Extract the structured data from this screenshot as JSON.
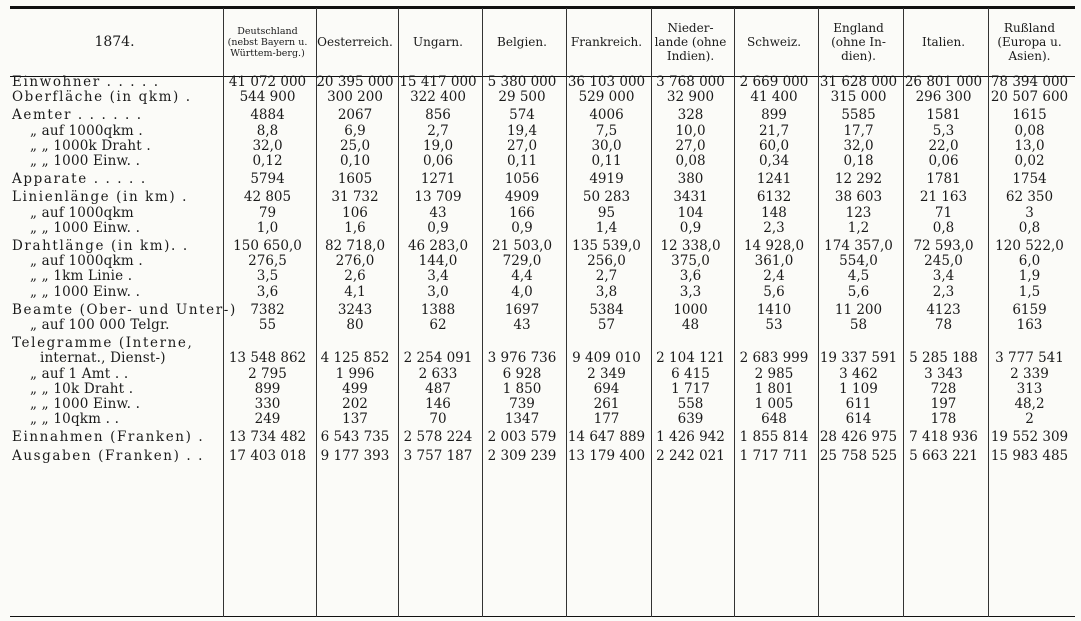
{
  "header": {
    "year": "1874.",
    "countries": [
      "Deutschland (nebst Bayern u. Württem-berg.)",
      "Oesterreich.",
      "Ungarn.",
      "Belgien.",
      "Frankreich.",
      "Nieder-lande (ohne Indien).",
      "Schweiz.",
      "England (ohne In-dien).",
      "Italien.",
      "Rußland (Europa u. Asien)."
    ]
  },
  "rows": [
    {
      "label": "Einwohner . . . . .",
      "values": [
        "41 072 000",
        "20 395 000",
        "15 417 000",
        "5 380 000",
        "36 103 000",
        "3 768 000",
        "2 669 000",
        "31 628 000",
        "26 801 000",
        "78 394 000"
      ]
    },
    {
      "label": "Oberfläche (in qkm) .",
      "values": [
        "544 900",
        "300 200",
        "322 400",
        "29 500",
        "529 000",
        "32 900",
        "41 400",
        "315 000",
        "296 300",
        "20 507 600"
      ]
    },
    {
      "label": "Aemter . . . . . .",
      "values": [
        "4884",
        "2067",
        "856",
        "574",
        "4006",
        "328",
        "899",
        "5585",
        "1581",
        "1615"
      ]
    },
    {
      "label": "„ auf 1000qkm .",
      "values": [
        "8,8",
        "6,9",
        "2,7",
        "19,4",
        "7,5",
        "10,0",
        "21,7",
        "17,7",
        "5,3",
        "0,08"
      ]
    },
    {
      "label": "„ „ 1000k Draht .",
      "values": [
        "32,0",
        "25,0",
        "19,0",
        "27,0",
        "30,0",
        "27,0",
        "60,0",
        "32,0",
        "22,0",
        "13,0"
      ]
    },
    {
      "label": "„ „ 1000 Einw. .",
      "values": [
        "0,12",
        "0,10",
        "0,06",
        "0,11",
        "0,11",
        "0,08",
        "0,34",
        "0,18",
        "0,06",
        "0,02"
      ]
    },
    {
      "label": "Apparate . . . . .",
      "values": [
        "5794",
        "1605",
        "1271",
        "1056",
        "4919",
        "380",
        "1241",
        "12 292",
        "1781",
        "1754"
      ]
    },
    {
      "label": "Linienlänge (in km) .",
      "values": [
        "42 805",
        "31 732",
        "13 709",
        "4909",
        "50 283",
        "3431",
        "6132",
        "38 603",
        "21 163",
        "62 350"
      ]
    },
    {
      "label": "„ auf 1000qkm",
      "values": [
        "79",
        "106",
        "43",
        "166",
        "95",
        "104",
        "148",
        "123",
        "71",
        "3"
      ]
    },
    {
      "label": "„ „ 1000 Einw. .",
      "values": [
        "1,0",
        "1,6",
        "0,9",
        "0,9",
        "1,4",
        "0,9",
        "2,3",
        "1,2",
        "0,8",
        "0,8"
      ]
    },
    {
      "label": "Drahtlänge (in km). .",
      "values": [
        "150 650,0",
        "82 718,0",
        "46 283,0",
        "21 503,0",
        "135 539,0",
        "12 338,0",
        "14 928,0",
        "174 357,0",
        "72 593,0",
        "120 522,0"
      ]
    },
    {
      "label": "„ auf 1000qkm .",
      "values": [
        "276,5",
        "276,0",
        "144,0",
        "729,0",
        "256,0",
        "375,0",
        "361,0",
        "554,0",
        "245,0",
        "6,0"
      ]
    },
    {
      "label": "„ „ 1km Linie .",
      "values": [
        "3,5",
        "2,6",
        "3,4",
        "4,4",
        "2,7",
        "3,6",
        "2,4",
        "4,5",
        "3,4",
        "1,9"
      ]
    },
    {
      "label": "„ „ 1000 Einw. .",
      "values": [
        "3,6",
        "4,1",
        "3,0",
        "4,0",
        "3,8",
        "3,3",
        "5,6",
        "5,6",
        "2,3",
        "1,5"
      ]
    },
    {
      "label": "Beamte (Ober- und Unter-)",
      "values": [
        "7382",
        "3243",
        "1388",
        "1697",
        "5384",
        "1000",
        "1410",
        "11 200",
        "4123",
        "6159"
      ]
    },
    {
      "label": "„ auf 100 000 Telgr.",
      "values": [
        "55",
        "80",
        "62",
        "43",
        "57",
        "48",
        "53",
        "58",
        "78",
        "163"
      ]
    },
    {
      "label": "Telegramme (Interne,",
      "values": [
        "",
        "",
        "",
        "",
        "",
        "",
        "",
        "",
        "",
        ""
      ]
    },
    {
      "label": "internat., Dienst-)",
      "values": [
        "13 548 862",
        "4 125 852",
        "2 254 091",
        "3 976 736",
        "9 409 010",
        "2 104 121",
        "2 683 999",
        "19 337 591",
        "5 285 188",
        "3 777 541"
      ]
    },
    {
      "label": "„ auf 1 Amt . .",
      "values": [
        "2 795",
        "1 996",
        "2 633",
        "6 928",
        "2 349",
        "6 415",
        "2 985",
        "3 462",
        "3 343",
        "2 339"
      ]
    },
    {
      "label": "„ „ 10k Draht .",
      "values": [
        "899",
        "499",
        "487",
        "1 850",
        "694",
        "1 717",
        "1 801",
        "1 109",
        "728",
        "313"
      ]
    },
    {
      "label": "„ „ 1000 Einw. .",
      "values": [
        "330",
        "202",
        "146",
        "739",
        "261",
        "558",
        "1 005",
        "611",
        "197",
        "48,2"
      ]
    },
    {
      "label": "„ „ 10qkm . .",
      "values": [
        "249",
        "137",
        "70",
        "1347",
        "177",
        "639",
        "648",
        "614",
        "178",
        "2"
      ]
    },
    {
      "label": "Einnahmen (Franken) .",
      "values": [
        "13 734 482",
        "6 543 735",
        "2 578 224",
        "2 003 579",
        "14 647 889",
        "1 426 942",
        "1 855 814",
        "28 426 975",
        "7 418 936",
        "19 552 309"
      ]
    },
    {
      "label": "Ausgaben (Franken) . .",
      "values": [
        "17 403 018",
        "9 177 393",
        "3 757 187",
        "2 309 239",
        "13 179 400",
        "2 242 021",
        "1 717 711",
        "25 758 525",
        "5 663 221",
        "15 983 485"
      ]
    }
  ]
}
